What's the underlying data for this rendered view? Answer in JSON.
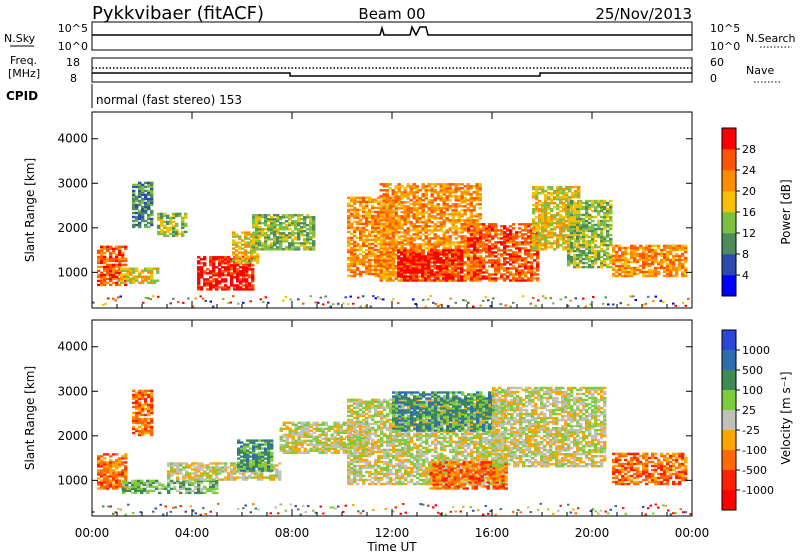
{
  "header": {
    "station": "Pykkvibaer (fitACF)",
    "beam": "Beam 00",
    "date": "25/Nov/2013"
  },
  "strip": {
    "nsky_label": "N.Sky",
    "nsearch_label": "N.Search",
    "nsky_ticks": [
      "10^5",
      "10^0"
    ],
    "nsearch_ticks": [
      "10^5",
      "10^0"
    ],
    "freq_label": "Freq.",
    "freq_unit": "[MHz]",
    "freq_ticks": [
      "18",
      "8"
    ],
    "nave_label": "Nave",
    "nave_ticks": [
      "60",
      "0"
    ],
    "cpid_label": "CPID",
    "cpid_text": "normal (fast stereo) 153"
  },
  "power_colorbar": {
    "label": "Power [dB]",
    "ticks": [
      "28",
      "24",
      "20",
      "16",
      "12",
      "8",
      "4"
    ],
    "colors": [
      "#0000ff",
      "#2c4bb0",
      "#4e8a5e",
      "#7cc043",
      "#f5c000",
      "#ff8c00",
      "#ff5500",
      "#ff0000"
    ]
  },
  "velocity_colorbar": {
    "label": "Velocity [m s⁻¹]",
    "ticks": [
      "1000",
      "500",
      "100",
      "25",
      "-25",
      "-100",
      "-500",
      "-1000"
    ],
    "colors": [
      "#2b46d8",
      "#2f6db0",
      "#3e8a55",
      "#7ccc3c",
      "#c0c0b8",
      "#ffa500",
      "#ff6a00",
      "#ff2000",
      "#ff0000"
    ]
  },
  "chart_data": [
    {
      "type": "heatmap",
      "name": "power",
      "ylabel": "Slant Range [km]",
      "ylim": [
        200,
        4600
      ],
      "yticks": [
        "4000",
        "3000",
        "2000",
        "1000"
      ],
      "xlim": [
        0,
        24
      ],
      "regions": [
        {
          "t0": 0.2,
          "t1": 1.4,
          "r0": 700,
          "r1": 1600,
          "level": 6
        },
        {
          "t0": 1.0,
          "t1": 2.6,
          "r0": 750,
          "r1": 1100,
          "level": 4
        },
        {
          "t0": 1.6,
          "t1": 2.4,
          "r0": 2000,
          "r1": 3000,
          "level": 2
        },
        {
          "t0": 2.6,
          "t1": 3.8,
          "r0": 1800,
          "r1": 2300,
          "level": 3
        },
        {
          "t0": 4.2,
          "t1": 6.4,
          "r0": 600,
          "r1": 1350,
          "level": 7
        },
        {
          "t0": 5.6,
          "t1": 6.6,
          "r0": 1200,
          "r1": 1900,
          "level": 4
        },
        {
          "t0": 6.4,
          "t1": 8.8,
          "r0": 1500,
          "r1": 2300,
          "level": 3
        },
        {
          "t0": 10.2,
          "t1": 12.0,
          "r0": 900,
          "r1": 2700,
          "level": 5
        },
        {
          "t0": 11.5,
          "t1": 15.5,
          "r0": 800,
          "r1": 3000,
          "level": 5
        },
        {
          "t0": 12.2,
          "t1": 14.8,
          "r0": 800,
          "r1": 1500,
          "level": 7
        },
        {
          "t0": 15.0,
          "t1": 17.8,
          "r0": 800,
          "r1": 2100,
          "level": 6
        },
        {
          "t0": 17.6,
          "t1": 19.5,
          "r0": 1500,
          "r1": 2900,
          "level": 4
        },
        {
          "t0": 19.0,
          "t1": 20.8,
          "r0": 1100,
          "r1": 2600,
          "level": 3
        },
        {
          "t0": 20.8,
          "t1": 23.8,
          "r0": 900,
          "r1": 1600,
          "level": 5
        }
      ]
    },
    {
      "type": "heatmap",
      "name": "velocity",
      "ylabel": "Slant Range [km]",
      "xlabel": "Time UT",
      "ylim": [
        200,
        4600
      ],
      "yticks": [
        "4000",
        "3000",
        "2000",
        "1000"
      ],
      "xlim": [
        0,
        24
      ],
      "xticks": [
        "00:00",
        "04:00",
        "08:00",
        "12:00",
        "16:00",
        "20:00",
        "00:00"
      ],
      "regions": [
        {
          "t0": 0.2,
          "t1": 1.4,
          "r0": 800,
          "r1": 1600,
          "level": 2
        },
        {
          "t0": 1.2,
          "t1": 5.0,
          "r0": 700,
          "r1": 1000,
          "level": 5
        },
        {
          "t0": 1.6,
          "t1": 2.4,
          "r0": 2000,
          "r1": 3000,
          "level": 2
        },
        {
          "t0": 3.0,
          "t1": 7.5,
          "r0": 1000,
          "r1": 1400,
          "level": 4
        },
        {
          "t0": 5.8,
          "t1": 7.2,
          "r0": 1200,
          "r1": 1900,
          "level": 6
        },
        {
          "t0": 7.5,
          "t1": 11.0,
          "r0": 1600,
          "r1": 2300,
          "level": 4
        },
        {
          "t0": 10.2,
          "t1": 16.5,
          "r0": 900,
          "r1": 2800,
          "level": 4
        },
        {
          "t0": 12.0,
          "t1": 16.0,
          "r0": 2100,
          "r1": 3000,
          "level": 6
        },
        {
          "t0": 13.5,
          "t1": 16.5,
          "r0": 800,
          "r1": 1400,
          "level": 2
        },
        {
          "t0": 16.0,
          "t1": 20.5,
          "r0": 1300,
          "r1": 3100,
          "level": 4
        },
        {
          "t0": 20.8,
          "t1": 23.8,
          "r0": 900,
          "r1": 1600,
          "level": 2
        }
      ]
    }
  ]
}
